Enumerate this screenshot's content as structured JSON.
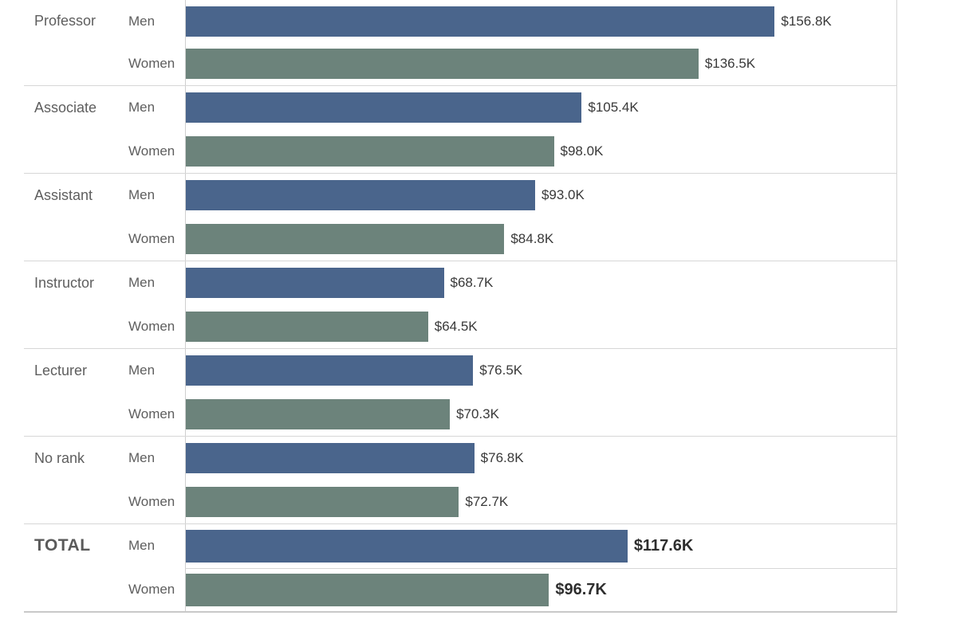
{
  "chart_data": {
    "type": "bar",
    "orientation": "horizontal",
    "title": "",
    "unit": "USD thousands per year",
    "value_axis": {
      "min_k": 0,
      "max_k": 189.2,
      "gridlines": false
    },
    "legend": "none",
    "colors": {
      "men_bar": "#4a658c",
      "women_bar": "#6c837b"
    },
    "categories": [
      "Professor",
      "Associate",
      "Assistant",
      "Instructor",
      "Lecturer",
      "No rank",
      "TOTAL"
    ],
    "series": [
      {
        "name": "Men",
        "values_k": [
          156.8,
          105.4,
          93.0,
          68.7,
          76.5,
          76.8,
          117.6
        ]
      },
      {
        "name": "Women",
        "values_k": [
          136.5,
          98.0,
          84.8,
          64.5,
          70.3,
          72.7,
          96.7
        ]
      }
    ],
    "groups": [
      {
        "rank": "Professor",
        "is_total": false,
        "rows": [
          {
            "gender": "Men",
            "value_k": 156.8,
            "label": "$156.8K"
          },
          {
            "gender": "Women",
            "value_k": 136.5,
            "label": "$136.5K"
          }
        ]
      },
      {
        "rank": "Associate",
        "is_total": false,
        "rows": [
          {
            "gender": "Men",
            "value_k": 105.4,
            "label": "$105.4K"
          },
          {
            "gender": "Women",
            "value_k": 98.0,
            "label": "$98.0K"
          }
        ]
      },
      {
        "rank": "Assistant",
        "is_total": false,
        "rows": [
          {
            "gender": "Men",
            "value_k": 93.0,
            "label": "$93.0K"
          },
          {
            "gender": "Women",
            "value_k": 84.8,
            "label": "$84.8K"
          }
        ]
      },
      {
        "rank": "Instructor",
        "is_total": false,
        "rows": [
          {
            "gender": "Men",
            "value_k": 68.7,
            "label": "$68.7K"
          },
          {
            "gender": "Women",
            "value_k": 64.5,
            "label": "$64.5K"
          }
        ]
      },
      {
        "rank": "Lecturer",
        "is_total": false,
        "rows": [
          {
            "gender": "Men",
            "value_k": 76.5,
            "label": "$76.5K"
          },
          {
            "gender": "Women",
            "value_k": 70.3,
            "label": "$70.3K"
          }
        ]
      },
      {
        "rank": "No rank",
        "is_total": false,
        "rows": [
          {
            "gender": "Men",
            "value_k": 76.8,
            "label": "$76.8K"
          },
          {
            "gender": "Women",
            "value_k": 72.7,
            "label": "$72.7K"
          }
        ]
      },
      {
        "rank": "TOTAL",
        "is_total": true,
        "rows": [
          {
            "gender": "Men",
            "value_k": 117.6,
            "label": "$117.6K"
          },
          {
            "gender": "Women",
            "value_k": 96.7,
            "label": "$96.7K"
          }
        ]
      }
    ]
  }
}
